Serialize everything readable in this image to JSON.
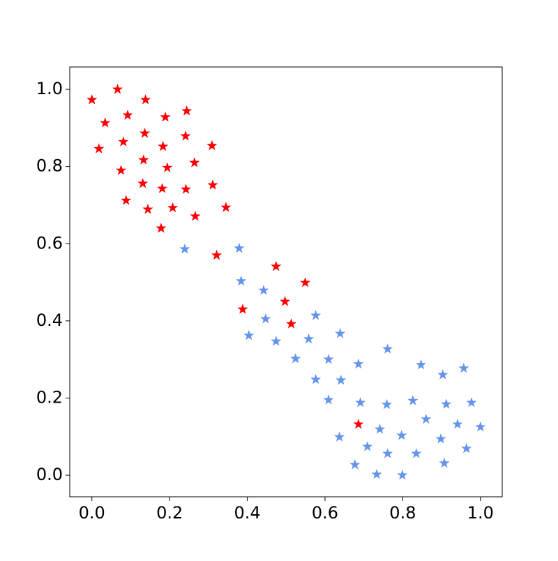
{
  "chart_data": {
    "type": "scatter",
    "marker": "star",
    "xlim": [
      -0.057,
      1.056
    ],
    "ylim": [
      -0.056,
      1.058
    ],
    "xticks": [
      {
        "value": 0,
        "label": "0.0"
      },
      {
        "value": 0.2,
        "label": "0.2"
      },
      {
        "value": 0.4,
        "label": "0.4"
      },
      {
        "value": 0.6,
        "label": "0.6"
      },
      {
        "value": 0.8,
        "label": "0.8"
      },
      {
        "value": 1,
        "label": "1.0"
      }
    ],
    "yticks": [
      {
        "value": 0,
        "label": "0.0"
      },
      {
        "value": 0.2,
        "label": "0.2"
      },
      {
        "value": 0.4,
        "label": "0.4"
      },
      {
        "value": 0.6,
        "label": "0.6"
      },
      {
        "value": 0.8,
        "label": "0.8"
      },
      {
        "value": 1,
        "label": "1.0"
      }
    ],
    "grid": false,
    "series": [
      {
        "color": "#ff0000",
        "x": [
          0.0,
          0.066,
          0.138,
          0.034,
          0.092,
          0.189,
          0.244,
          0.018,
          0.081,
          0.136,
          0.183,
          0.241,
          0.309,
          0.075,
          0.133,
          0.194,
          0.264,
          0.131,
          0.181,
          0.242,
          0.311,
          0.088,
          0.144,
          0.208,
          0.266,
          0.345,
          0.178,
          0.321,
          0.474,
          0.549,
          0.388,
          0.497,
          0.513,
          0.686
        ],
        "values": [
          0.973,
          1.0,
          0.973,
          0.913,
          0.933,
          0.928,
          0.944,
          0.846,
          0.864,
          0.886,
          0.852,
          0.879,
          0.854,
          0.79,
          0.817,
          0.797,
          0.81,
          0.756,
          0.743,
          0.741,
          0.752,
          0.712,
          0.689,
          0.693,
          0.671,
          0.694,
          0.64,
          0.57,
          0.541,
          0.499,
          0.43,
          0.45,
          0.392,
          0.132
        ]
      },
      {
        "color": "#6495ed",
        "x": [
          0.239,
          0.379,
          0.384,
          0.442,
          0.447,
          0.404,
          0.474,
          0.576,
          0.558,
          0.524,
          0.639,
          0.609,
          0.576,
          0.641,
          0.609,
          0.686,
          0.691,
          0.761,
          0.759,
          0.741,
          0.637,
          0.709,
          0.677,
          0.761,
          0.733,
          0.797,
          0.799,
          0.826,
          0.847,
          0.86,
          0.835,
          0.903,
          0.912,
          0.898,
          0.907,
          0.957,
          0.977,
          0.941,
          0.964,
          1.0
        ],
        "values": [
          0.586,
          0.588,
          0.503,
          0.479,
          0.405,
          0.362,
          0.347,
          0.414,
          0.353,
          0.302,
          0.367,
          0.3,
          0.248,
          0.246,
          0.195,
          0.288,
          0.188,
          0.327,
          0.183,
          0.119,
          0.099,
          0.074,
          0.027,
          0.056,
          0.002,
          0.103,
          0.0,
          0.193,
          0.286,
          0.145,
          0.056,
          0.26,
          0.184,
          0.094,
          0.031,
          0.277,
          0.188,
          0.132,
          0.069,
          0.125
        ]
      }
    ]
  }
}
